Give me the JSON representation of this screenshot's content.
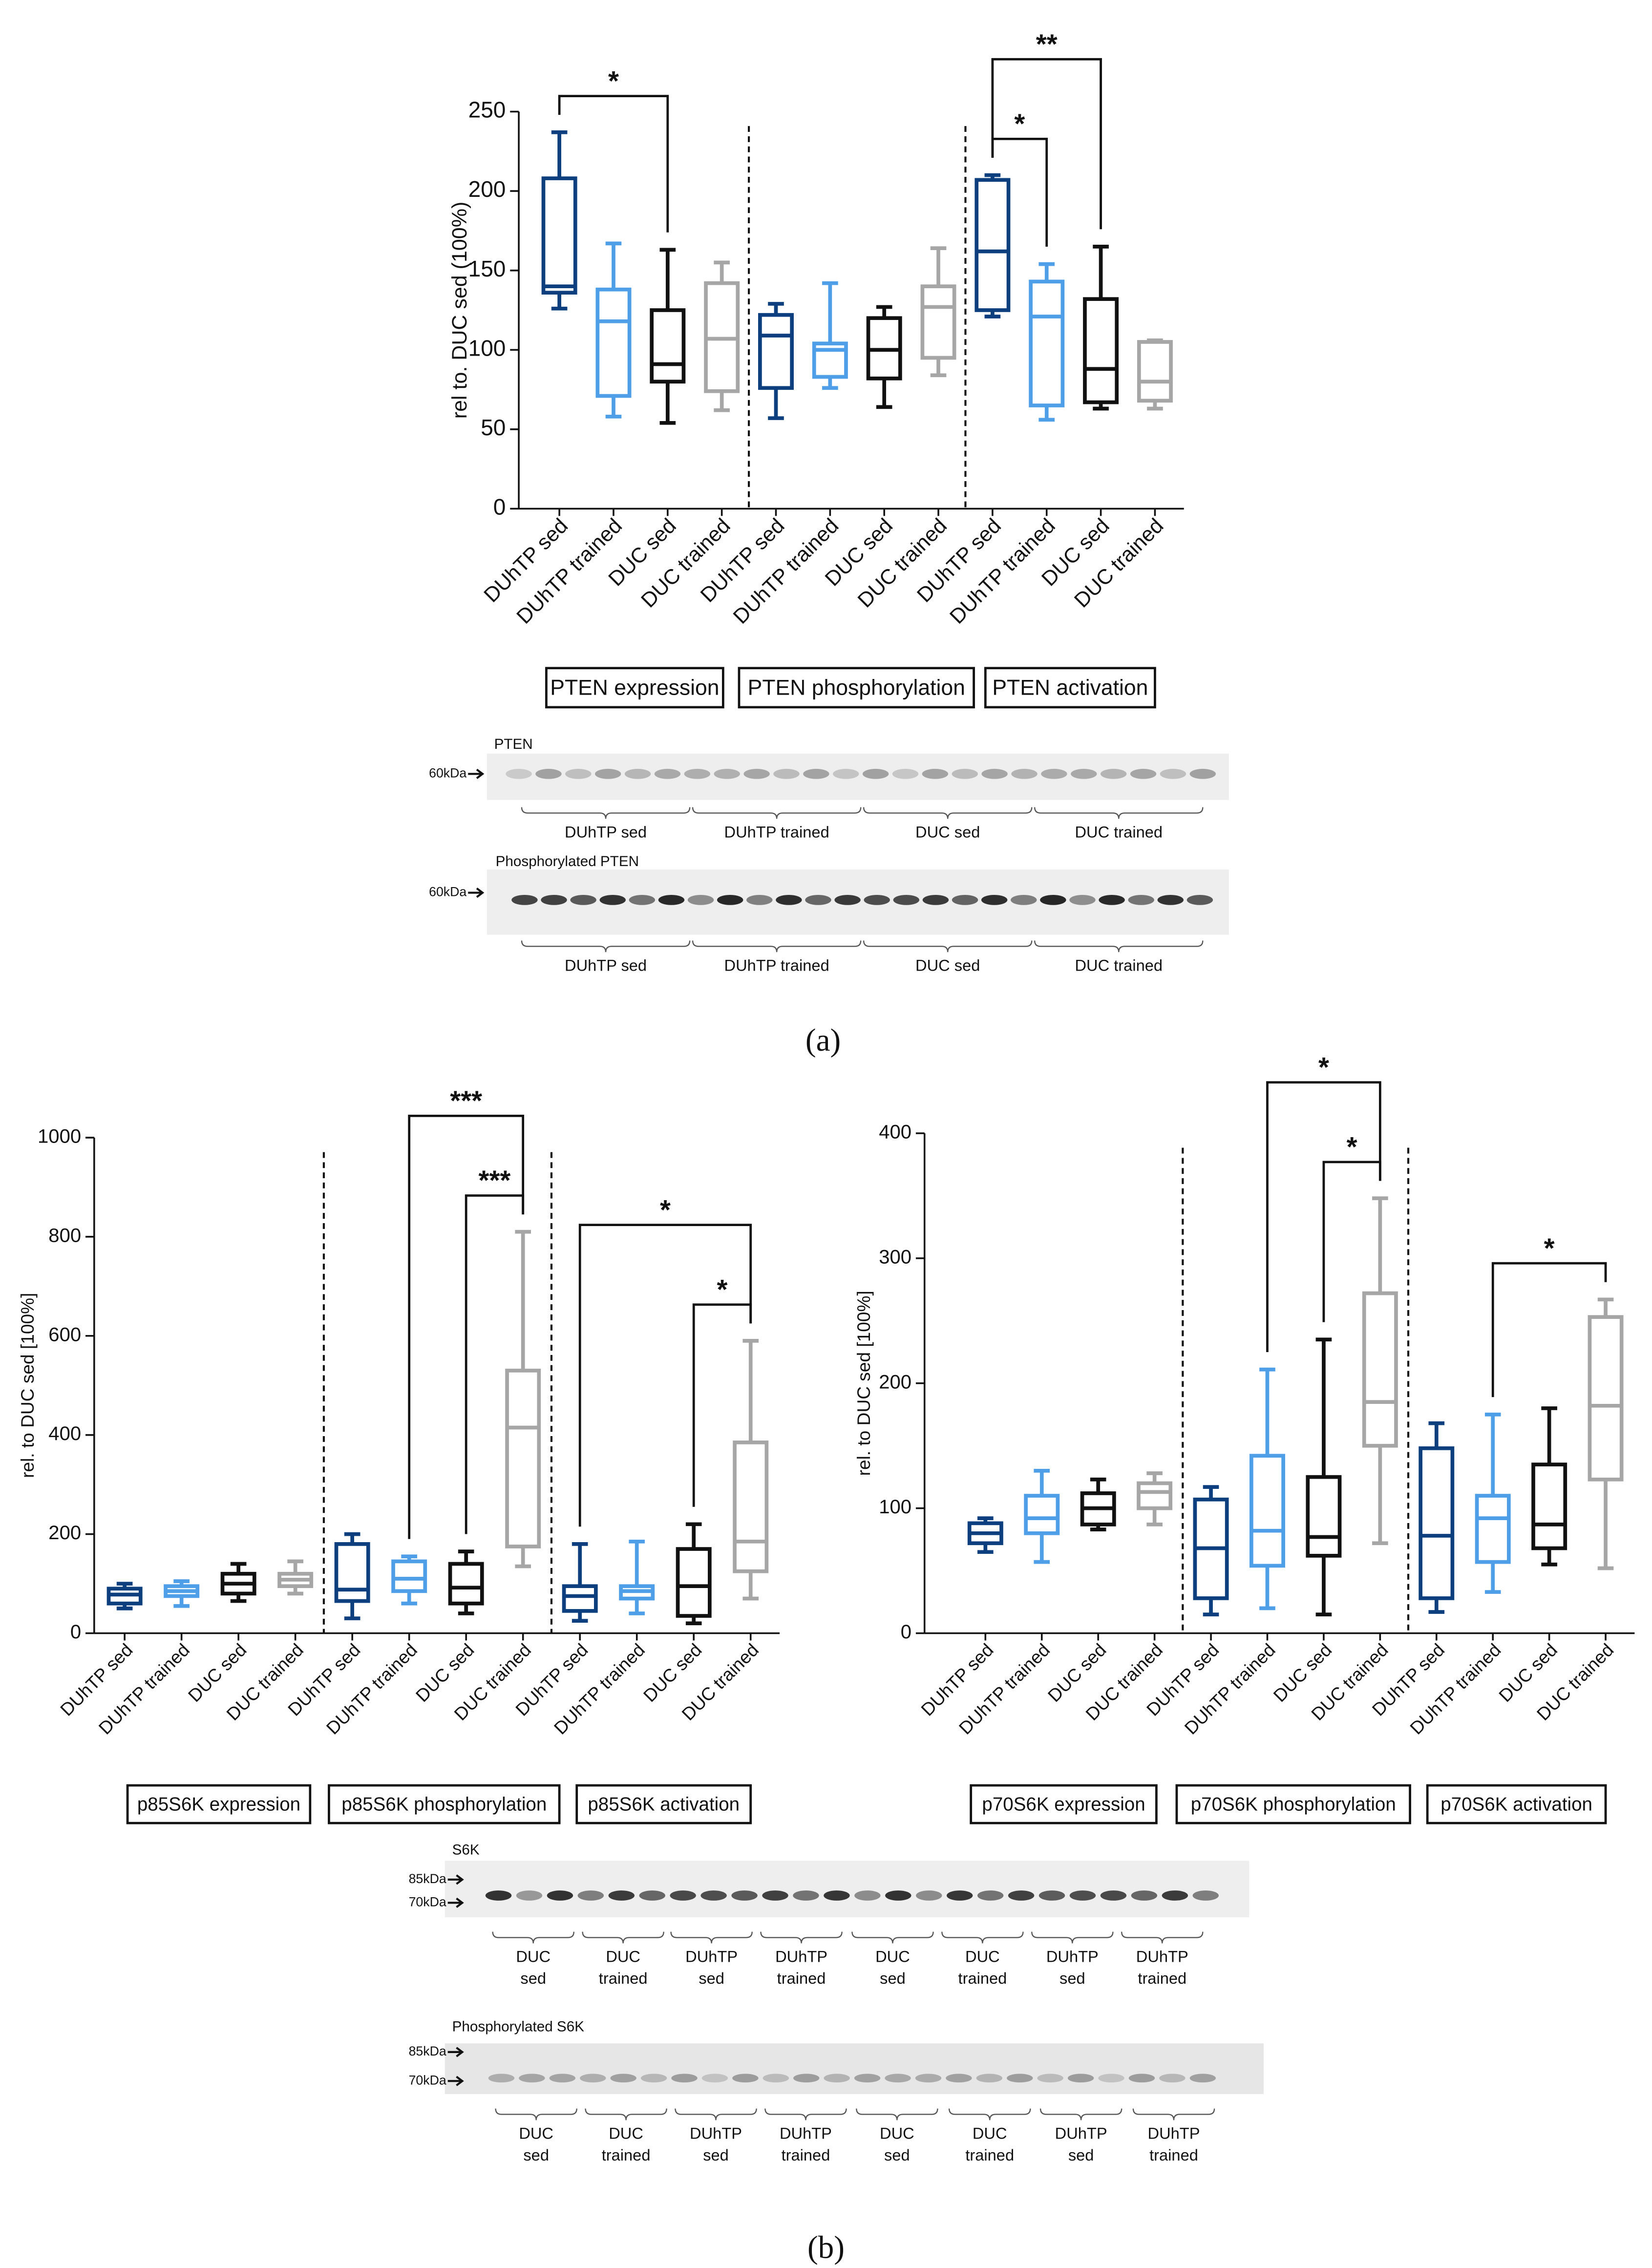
{
  "chart_data": [
    {
      "type": "box",
      "ylabel": "rel to. DUC sed (100%)",
      "categories": [
        "DUhTP sed",
        "DUhTP trained",
        "DUC sed",
        "DUC trained",
        "DUhTP sed",
        "DUhTP trained",
        "DUC sed",
        "DUC trained",
        "DUhTP sed",
        "DUhTP trained",
        "DUC sed",
        "DUC trained"
      ],
      "colors": [
        "#0d3f7e",
        "#4e9ee8",
        "#111111",
        "#a6a6a6",
        "#0d3f7e",
        "#4e9ee8",
        "#111111",
        "#a6a6a6",
        "#0d3f7e",
        "#4e9ee8",
        "#111111",
        "#a6a6a6"
      ],
      "boxes": [
        {
          "min": 126,
          "q1": 136,
          "median": 140,
          "q3": 208,
          "max": 237
        },
        {
          "min": 58,
          "q1": 71,
          "median": 118,
          "q3": 138,
          "max": 167
        },
        {
          "min": 54,
          "q1": 80,
          "median": 91,
          "q3": 125,
          "max": 163
        },
        {
          "min": 62,
          "q1": 74,
          "median": 107,
          "q3": 142,
          "max": 155
        },
        {
          "min": 57,
          "q1": 76,
          "median": 109,
          "q3": 122,
          "max": 129
        },
        {
          "min": 76,
          "q1": 83,
          "median": 100,
          "q3": 104,
          "max": 142
        },
        {
          "min": 64,
          "q1": 82,
          "median": 100,
          "q3": 120,
          "max": 127
        },
        {
          "min": 84,
          "q1": 95,
          "median": 127,
          "q3": 140,
          "max": 164
        },
        {
          "min": 121,
          "q1": 125,
          "median": 162,
          "q3": 207,
          "max": 210
        },
        {
          "min": 56,
          "q1": 65,
          "median": 121,
          "q3": 143,
          "max": 154
        },
        {
          "min": 63,
          "q1": 67,
          "median": 88,
          "q3": 132,
          "max": 165
        },
        {
          "min": 63,
          "q1": 68,
          "median": 80,
          "q3": 105,
          "max": 106
        }
      ],
      "ylim": [
        0,
        250
      ],
      "yticks": [
        0,
        50,
        100,
        150,
        200,
        250
      ],
      "group_labels": [
        "PTEN expression",
        "PTEN phosphorylation",
        "PTEN activation"
      ],
      "annotations": [
        {
          "from": 0,
          "to": 2,
          "label": "*"
        },
        {
          "from": 8,
          "to": 10,
          "label": "**"
        },
        {
          "from": 8,
          "to": 9,
          "label": "*"
        }
      ]
    },
    {
      "type": "box",
      "ylabel": "rel. to DUC sed [100%]",
      "categories": [
        "DUhTP sed",
        "DUhTP trained",
        "DUC sed",
        "DUC trained",
        "DUhTP sed",
        "DUhTP trained",
        "DUC sed",
        "DUC trained",
        "DUhTP sed",
        "DUhTP trained",
        "DUC sed",
        "DUC trained"
      ],
      "colors": [
        "#0d3f7e",
        "#4e9ee8",
        "#111111",
        "#a6a6a6",
        "#0d3f7e",
        "#4e9ee8",
        "#111111",
        "#a6a6a6",
        "#0d3f7e",
        "#4e9ee8",
        "#111111",
        "#a6a6a6"
      ],
      "boxes": [
        {
          "min": 50,
          "q1": 60,
          "median": 78,
          "q3": 90,
          "max": 100
        },
        {
          "min": 55,
          "q1": 75,
          "median": 85,
          "q3": 95,
          "max": 105
        },
        {
          "min": 65,
          "q1": 80,
          "median": 100,
          "q3": 120,
          "max": 140
        },
        {
          "min": 80,
          "q1": 95,
          "median": 108,
          "q3": 120,
          "max": 145
        },
        {
          "min": 30,
          "q1": 65,
          "median": 88,
          "q3": 180,
          "max": 200
        },
        {
          "min": 60,
          "q1": 85,
          "median": 110,
          "q3": 145,
          "max": 155
        },
        {
          "min": 40,
          "q1": 60,
          "median": 92,
          "q3": 140,
          "max": 165
        },
        {
          "min": 135,
          "q1": 175,
          "median": 415,
          "q3": 530,
          "max": 810
        },
        {
          "min": 25,
          "q1": 45,
          "median": 75,
          "q3": 95,
          "max": 180
        },
        {
          "min": 40,
          "q1": 70,
          "median": 85,
          "q3": 95,
          "max": 185
        },
        {
          "min": 20,
          "q1": 35,
          "median": 95,
          "q3": 170,
          "max": 220
        },
        {
          "min": 70,
          "q1": 125,
          "median": 185,
          "q3": 385,
          "max": 590
        }
      ],
      "ylim": [
        0,
        1000
      ],
      "yticks": [
        0,
        200,
        400,
        600,
        800,
        1000
      ],
      "group_labels": [
        "p85S6K expression",
        "p85S6K phosphorylation",
        "p85S6K activation"
      ],
      "annotations": [
        {
          "from": 5,
          "to": 7,
          "label": "***"
        },
        {
          "from": 6,
          "to": 7,
          "label": "***"
        },
        {
          "from": 8,
          "to": 11,
          "label": "*"
        },
        {
          "from": 10,
          "to": 11,
          "label": "*"
        }
      ]
    },
    {
      "type": "box",
      "ylabel": "rel. to DUC sed [100%]",
      "categories": [
        "DUhTP sed",
        "DUhTP trained",
        "DUC sed",
        "DUC trained",
        "DUhTP sed",
        "DUhTP trained",
        "DUC sed",
        "DUC trained",
        "DUhTP sed",
        "DUhTP trained",
        "DUC sed",
        "DUC trained"
      ],
      "colors": [
        "#0d3f7e",
        "#4e9ee8",
        "#111111",
        "#a6a6a6",
        "#0d3f7e",
        "#4e9ee8",
        "#111111",
        "#a6a6a6",
        "#0d3f7e",
        "#4e9ee8",
        "#111111",
        "#a6a6a6"
      ],
      "boxes": [
        {
          "min": 65,
          "q1": 72,
          "median": 80,
          "q3": 88,
          "max": 92
        },
        {
          "min": 57,
          "q1": 80,
          "median": 92,
          "q3": 110,
          "max": 130
        },
        {
          "min": 83,
          "q1": 87,
          "median": 100,
          "q3": 112,
          "max": 123
        },
        {
          "min": 87,
          "q1": 100,
          "median": 113,
          "q3": 120,
          "max": 128
        },
        {
          "min": 15,
          "q1": 28,
          "median": 68,
          "q3": 107,
          "max": 117
        },
        {
          "min": 20,
          "q1": 54,
          "median": 82,
          "q3": 142,
          "max": 211
        },
        {
          "min": 15,
          "q1": 62,
          "median": 77,
          "q3": 125,
          "max": 235
        },
        {
          "min": 72,
          "q1": 150,
          "median": 185,
          "q3": 272,
          "max": 348
        },
        {
          "min": 17,
          "q1": 28,
          "median": 78,
          "q3": 148,
          "max": 168
        },
        {
          "min": 33,
          "q1": 57,
          "median": 92,
          "q3": 110,
          "max": 175
        },
        {
          "min": 55,
          "q1": 68,
          "median": 87,
          "q3": 135,
          "max": 180
        },
        {
          "min": 52,
          "q1": 123,
          "median": 182,
          "q3": 253,
          "max": 267
        }
      ],
      "ylim": [
        0,
        400
      ],
      "yticks": [
        0,
        100,
        200,
        300,
        400
      ],
      "group_labels": [
        "p70S6K expression",
        "p70S6K phosphorylation",
        "p70S6K activation"
      ],
      "annotations": [
        {
          "from": 5,
          "to": 7,
          "label": "*"
        },
        {
          "from": 6,
          "to": 7,
          "label": "*"
        },
        {
          "from": 9,
          "to": 11,
          "label": "*"
        }
      ]
    }
  ],
  "blots": [
    {
      "title": "PTEN",
      "markers": [
        "60kDa"
      ],
      "groups": [
        [
          "DUhTP sed"
        ],
        [
          "DUhTP trained"
        ],
        [
          "DUC sed"
        ],
        [
          "DUC trained"
        ]
      ]
    },
    {
      "title": "Phosphorylated PTEN",
      "markers": [
        "60kDa"
      ],
      "groups": [
        [
          "DUhTP sed"
        ],
        [
          "DUhTP trained"
        ],
        [
          "DUC sed"
        ],
        [
          "DUC trained"
        ]
      ]
    },
    {
      "title": "S6K",
      "markers": [
        "85kDa",
        "70kDa"
      ],
      "groups": [
        [
          "DUC",
          "sed"
        ],
        [
          "DUC",
          "trained"
        ],
        [
          "DUhTP",
          "sed"
        ],
        [
          "DUhTP",
          "trained"
        ],
        [
          "DUC",
          "sed"
        ],
        [
          "DUC",
          "trained"
        ],
        [
          "DUhTP",
          "sed"
        ],
        [
          "DUhTP",
          "trained"
        ]
      ]
    },
    {
      "title": "Phosphorylated S6K",
      "markers": [
        "85kDa",
        "70kDa"
      ],
      "groups": [
        [
          "DUC",
          "sed"
        ],
        [
          "DUC",
          "trained"
        ],
        [
          "DUhTP",
          "sed"
        ],
        [
          "DUhTP",
          "trained"
        ],
        [
          "DUC",
          "sed"
        ],
        [
          "DUC",
          "trained"
        ],
        [
          "DUhTP",
          "sed"
        ],
        [
          "DUhTP",
          "trained"
        ]
      ]
    }
  ],
  "panels": [
    "(a)",
    "(b)"
  ]
}
